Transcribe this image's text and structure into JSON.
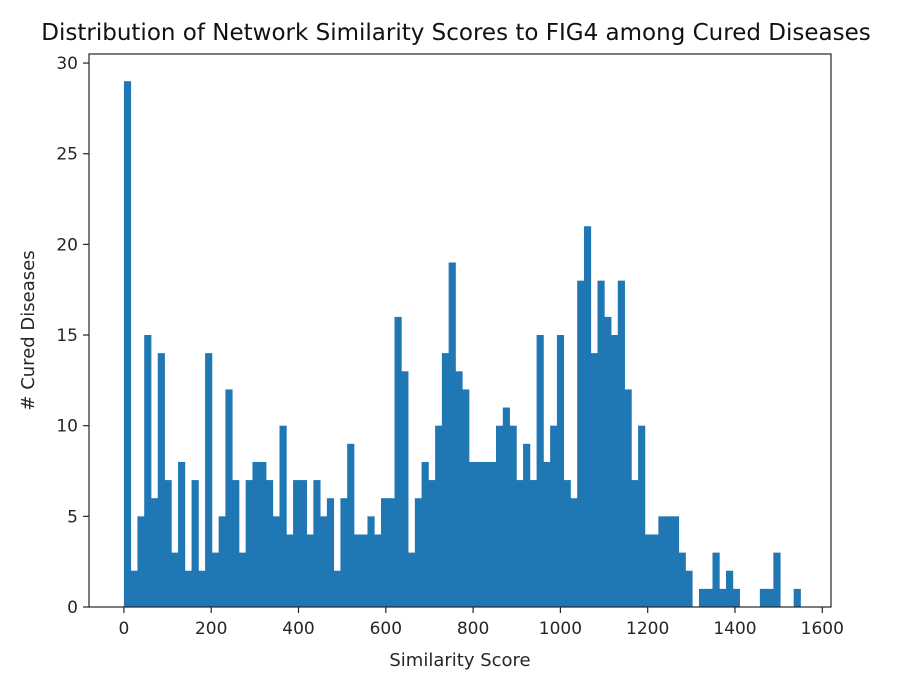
{
  "chart_data": {
    "type": "bar",
    "title": "Distribution of Network Similarity Scores to FIG4 among Cured Diseases",
    "xlabel": "Similarity Score",
    "ylabel": "# Cured Diseases",
    "xlim": [
      -80,
      1620
    ],
    "ylim": [
      0,
      30.5
    ],
    "xticks": [
      0,
      200,
      400,
      600,
      800,
      1000,
      1200,
      1400,
      1600
    ],
    "yticks": [
      0,
      5,
      10,
      15,
      20,
      25,
      30
    ],
    "grid": false,
    "bar_color": "#1f77b4",
    "bin_width": 15.5,
    "series": [
      {
        "bin_starts": [
          0,
          15.5,
          31,
          46.5,
          62,
          77.5,
          93,
          108.5,
          124,
          139.5,
          155,
          170.5,
          186,
          201.5,
          217,
          232.5,
          248,
          263.5,
          279,
          294.5,
          310,
          325.5,
          341,
          356.5,
          372,
          387.5,
          403,
          418.5,
          434,
          449.5,
          465,
          480.5,
          496,
          511.5,
          527,
          542.5,
          558,
          573.5,
          589,
          604.5,
          620,
          635.5,
          651,
          666.5,
          682,
          697.5,
          713,
          728.5,
          744,
          759.5,
          775,
          790.5,
          806,
          821.5,
          837,
          852.5,
          868,
          883.5,
          899,
          914.5,
          930,
          945.5,
          961,
          976.5,
          992,
          1007.5,
          1023,
          1038.5,
          1054,
          1069.5,
          1085,
          1100.5,
          1116,
          1131.5,
          1147,
          1162.5,
          1178,
          1193.5,
          1209,
          1224.5,
          1240,
          1255.5,
          1271,
          1286.5,
          1302,
          1317.5,
          1333,
          1348.5,
          1364,
          1379.5,
          1395,
          1410.5,
          1426,
          1441.5,
          1457,
          1472.5,
          1488,
          1503.5,
          1519,
          1534.5
        ],
        "values": [
          29,
          2,
          5,
          15,
          6,
          14,
          7,
          3,
          8,
          2,
          7,
          2,
          14,
          3,
          5,
          12,
          7,
          3,
          7,
          8,
          8,
          7,
          5,
          10,
          4,
          7,
          7,
          4,
          7,
          5,
          6,
          2,
          6,
          9,
          4,
          4,
          5,
          4,
          6,
          6,
          16,
          13,
          3,
          6,
          8,
          7,
          10,
          14,
          19,
          13,
          12,
          8,
          8,
          8,
          8,
          10,
          11,
          10,
          7,
          9,
          7,
          15,
          8,
          10,
          15,
          7,
          6,
          18,
          21,
          14,
          18,
          16,
          15,
          18,
          12,
          7,
          10,
          4,
          4,
          5,
          5,
          5,
          3,
          2,
          0,
          1,
          1,
          3,
          1,
          2,
          1,
          0,
          0,
          0,
          1,
          1,
          3,
          0,
          0,
          1
        ]
      }
    ]
  }
}
